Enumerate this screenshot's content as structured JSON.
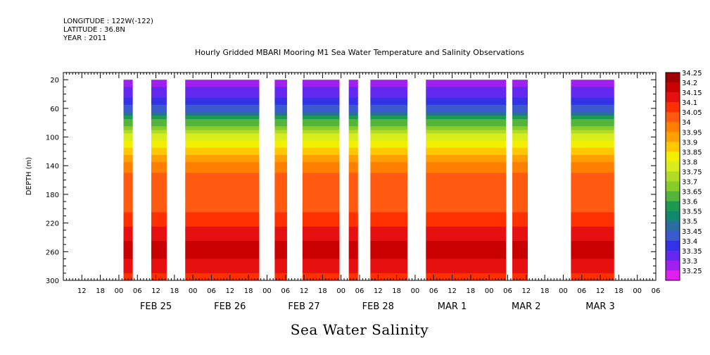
{
  "header": {
    "longitude": "LONGITUDE : 122W(-122)",
    "latitude": "LATITUDE : 36.8N",
    "year": "YEAR : 2011"
  },
  "chart_data": {
    "type": "heatmap",
    "title": "Hourly Gridded MBARI Mooring M1 Sea Water Temperature and Salinity Observations",
    "bottom_title": "Sea Water Salinity",
    "ylabel": "DEPTH (m)",
    "xlabel": "",
    "x_unit": "hours since Feb 25 2011 00:00",
    "xlim": [
      -18,
      174
    ],
    "ylim": [
      300,
      10
    ],
    "y_ticks": [
      20,
      60,
      100,
      140,
      180,
      220,
      260,
      300
    ],
    "x_tick_hour_labels": [
      "00",
      "06",
      "12",
      "18"
    ],
    "date_labels": [
      {
        "label": "FEB 25",
        "hour": 12
      },
      {
        "label": "FEB 26",
        "hour": 36
      },
      {
        "label": "FEB 27",
        "hour": 60
      },
      {
        "label": "FEB 28",
        "hour": 84
      },
      {
        "label": "MAR  1",
        "hour": 108
      },
      {
        "label": "MAR  2",
        "hour": 132
      },
      {
        "label": "MAR  3",
        "hour": 156
      }
    ],
    "colorbar_levels": [
      "34.25",
      "34.2",
      "34.15",
      "34.1",
      "34.05",
      "34",
      "33.95",
      "33.9",
      "33.85",
      "33.8",
      "33.75",
      "33.7",
      "33.65",
      "33.6",
      "33.55",
      "33.5",
      "33.45",
      "33.4",
      "33.35",
      "33.3",
      "33.25"
    ],
    "colorbar_colors": [
      "#a00000",
      "#c80000",
      "#e61010",
      "#ff3000",
      "#ff5a10",
      "#ff7f00",
      "#ffa000",
      "#ffc800",
      "#f0f000",
      "#d8ec1e",
      "#b0dc28",
      "#88cc28",
      "#55b43c",
      "#1e9a50",
      "#0f8a6e",
      "#2a6ea0",
      "#3a5acd",
      "#3232e6",
      "#6428f0",
      "#a020f0",
      "#e020f0"
    ],
    "data_segments": [
      {
        "start": 1.5,
        "end": 4.5
      },
      {
        "start": 10.5,
        "end": 15.5
      },
      {
        "start": 21.5,
        "end": 45.5
      },
      {
        "start": 50.5,
        "end": 54.5
      },
      {
        "start": 59.5,
        "end": 71.5
      },
      {
        "start": 74.5,
        "end": 77.5
      },
      {
        "start": 81.5,
        "end": 93.5
      },
      {
        "start": 99.5,
        "end": 125.5
      },
      {
        "start": 127.5,
        "end": 132.5
      },
      {
        "start": 146.5,
        "end": 160.5
      }
    ],
    "depth_profile": [
      {
        "depth": 20,
        "salinity": 33.33
      },
      {
        "depth": 40,
        "salinity": 33.37
      },
      {
        "depth": 60,
        "salinity": 33.47
      },
      {
        "depth": 80,
        "salinity": 33.68
      },
      {
        "depth": 100,
        "salinity": 33.82
      },
      {
        "depth": 120,
        "salinity": 33.93
      },
      {
        "depth": 140,
        "salinity": 34.02
      },
      {
        "depth": 160,
        "salinity": 34.07
      },
      {
        "depth": 180,
        "salinity": 34.08
      },
      {
        "depth": 200,
        "salinity": 34.09
      },
      {
        "depth": 220,
        "salinity": 34.14
      },
      {
        "depth": 240,
        "salinity": 34.19
      },
      {
        "depth": 260,
        "salinity": 34.23
      },
      {
        "depth": 280,
        "salinity": 34.18
      },
      {
        "depth": 300,
        "salinity": 34.13
      }
    ]
  }
}
